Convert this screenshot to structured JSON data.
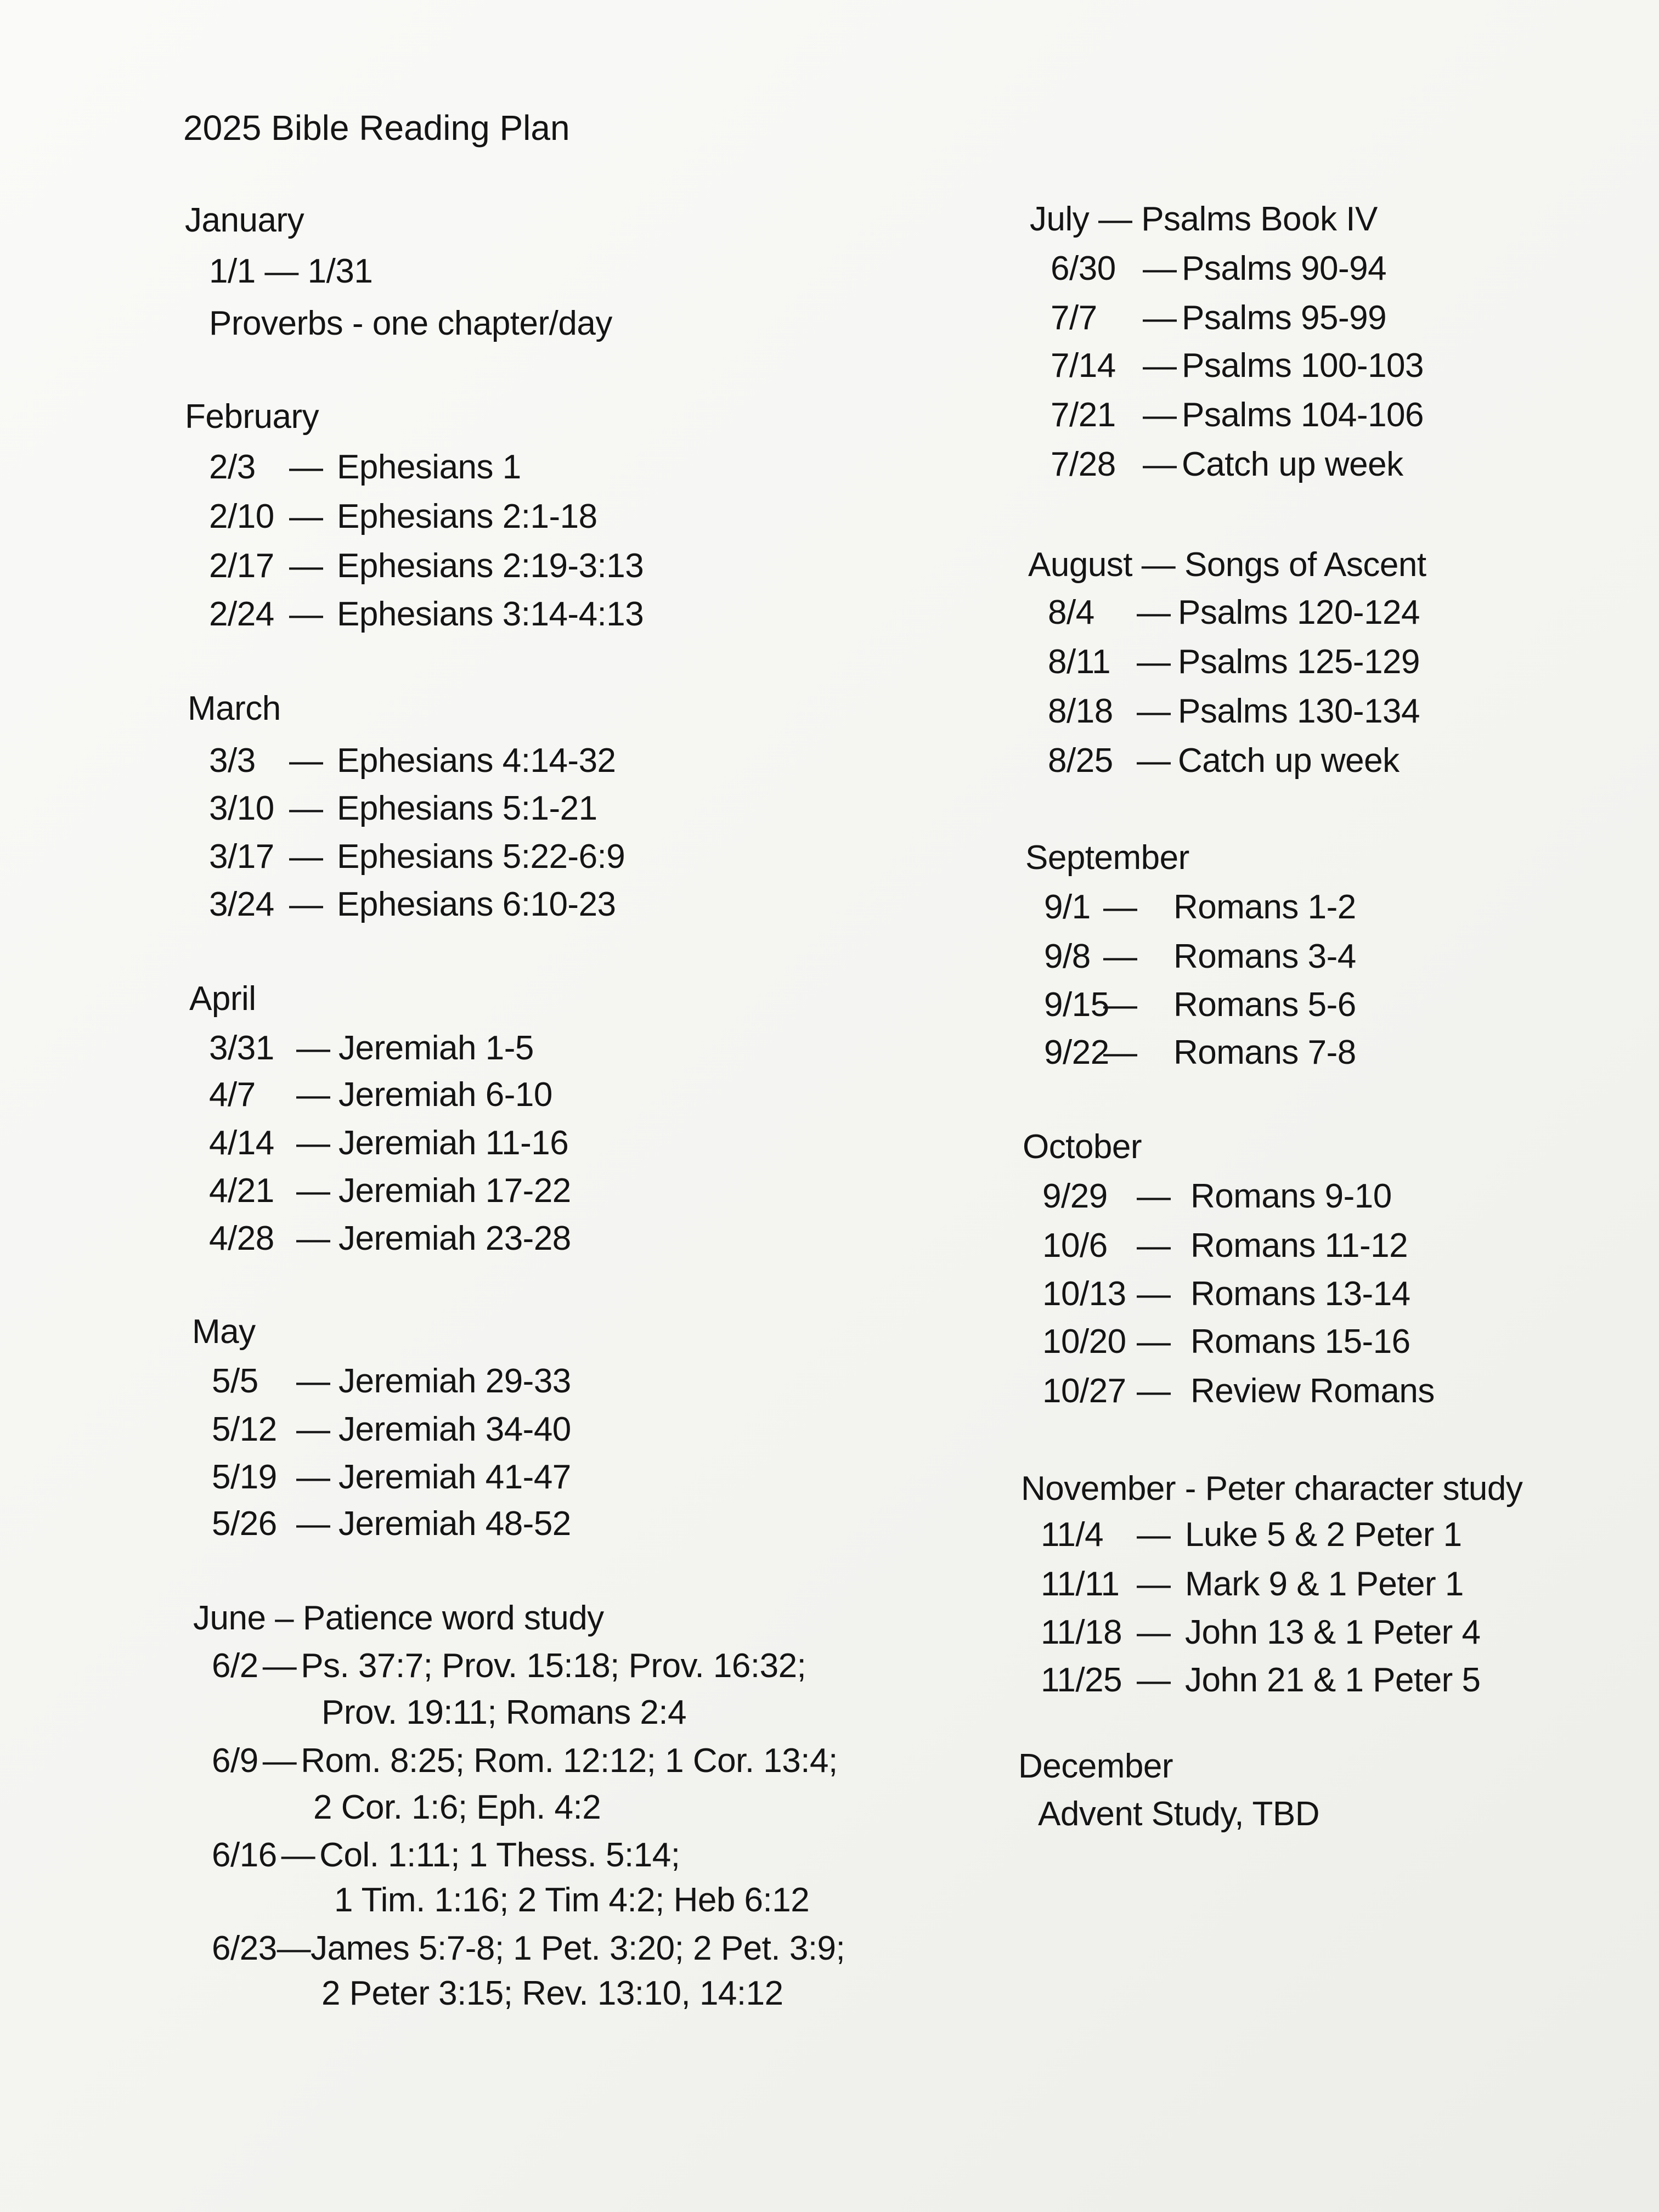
{
  "title": "2025 Bible Reading Plan",
  "separator": "—",
  "columns": [
    [
      {
        "heading": "January",
        "lines": [
          {
            "text": "1/1 — 1/31"
          },
          {
            "text": "Proverbs - one chapter/day"
          }
        ]
      },
      {
        "heading": "February",
        "entries": [
          {
            "date": "2/3",
            "reading": "Ephesians 1"
          },
          {
            "date": "2/10",
            "reading": "Ephesians 2:1-18"
          },
          {
            "date": "2/17",
            "reading": "Ephesians 2:19-3:13"
          },
          {
            "date": "2/24",
            "reading": "Ephesians 3:14-4:13"
          }
        ]
      },
      {
        "heading": "March",
        "entries": [
          {
            "date": "3/3",
            "reading": "Ephesians 4:14-32"
          },
          {
            "date": "3/10",
            "reading": "Ephesians 5:1-21"
          },
          {
            "date": "3/17",
            "reading": "Ephesians 5:22-6:9"
          },
          {
            "date": "3/24",
            "reading": "Ephesians 6:10-23"
          }
        ]
      },
      {
        "heading": "April",
        "entries": [
          {
            "date": "3/31",
            "reading": "Jeremiah 1-5"
          },
          {
            "date": "4/7",
            "reading": "Jeremiah 6-10"
          },
          {
            "date": "4/14",
            "reading": "Jeremiah 11-16"
          },
          {
            "date": "4/21",
            "reading": "Jeremiah 17-22"
          },
          {
            "date": "4/28",
            "reading": "Jeremiah 23-28"
          }
        ]
      },
      {
        "heading": "May",
        "entries": [
          {
            "date": "5/5",
            "reading": "Jeremiah 29-33"
          },
          {
            "date": "5/12",
            "reading": "Jeremiah 34-40"
          },
          {
            "date": "5/19",
            "reading": "Jeremiah 41-47"
          },
          {
            "date": "5/26",
            "reading": "Jeremiah 48-52"
          }
        ]
      },
      {
        "heading": "June – Patience word study",
        "entries": [
          {
            "date": "6/2",
            "reading": "Ps. 37:7; Prov. 15:18; Prov. 16:32;",
            "continuation": "Prov. 19:11; Romans 2:4"
          },
          {
            "date": "6/9",
            "reading": "Rom. 8:25; Rom. 12:12; 1 Cor. 13:4;",
            "continuation": "2 Cor. 1:6; Eph. 4:2"
          },
          {
            "date": "6/16",
            "reading": "Col. 1:11; 1 Thess. 5:14;",
            "continuation": "1 Tim. 1:16; 2 Tim 4:2; Heb 6:12"
          },
          {
            "date": "6/23",
            "reading": "James 5:7-8; 1 Pet. 3:20; 2 Pet. 3:9;",
            "continuation": "2 Peter 3:15; Rev. 13:10, 14:12"
          }
        ]
      }
    ],
    [
      {
        "heading": "July — Psalms Book IV",
        "entries": [
          {
            "date": "6/30",
            "reading": "Psalms 90-94"
          },
          {
            "date": "7/7",
            "reading": "Psalms 95-99"
          },
          {
            "date": "7/14",
            "reading": "Psalms 100-103"
          },
          {
            "date": "7/21",
            "reading": "Psalms 104-106"
          },
          {
            "date": "7/28",
            "reading": "Catch up week"
          }
        ]
      },
      {
        "heading": "August — Songs of Ascent",
        "entries": [
          {
            "date": "8/4",
            "reading": "Psalms 120-124"
          },
          {
            "date": "8/11",
            "reading": "Psalms 125-129"
          },
          {
            "date": "8/18",
            "reading": "Psalms 130-134"
          },
          {
            "date": "8/25",
            "reading": "Catch up week"
          }
        ]
      },
      {
        "heading": "September",
        "entries": [
          {
            "date": "9/1",
            "reading": "Romans 1-2"
          },
          {
            "date": "9/8",
            "reading": "Romans 3-4"
          },
          {
            "date": "9/15",
            "reading": "Romans 5-6"
          },
          {
            "date": "9/22",
            "reading": "Romans 7-8"
          }
        ]
      },
      {
        "heading": "October",
        "entries": [
          {
            "date": "9/29",
            "reading": "Romans 9-10"
          },
          {
            "date": "10/6",
            "reading": "Romans 11-12"
          },
          {
            "date": "10/13",
            "reading": "Romans 13-14"
          },
          {
            "date": "10/20",
            "reading": "Romans 15-16"
          },
          {
            "date": "10/27",
            "reading": "Review Romans"
          }
        ]
      },
      {
        "heading": "November - Peter character study",
        "entries": [
          {
            "date": "11/4",
            "reading": "Luke 5 & 2 Peter 1"
          },
          {
            "date": "11/11",
            "reading": "Mark 9 & 1 Peter 1"
          },
          {
            "date": "11/18",
            "reading": "John 13 & 1 Peter 4"
          },
          {
            "date": "11/25",
            "reading": "John 21 & 1 Peter 5"
          }
        ]
      },
      {
        "heading": "December",
        "lines": [
          {
            "text": "Advent Study, TBD"
          }
        ]
      }
    ]
  ]
}
